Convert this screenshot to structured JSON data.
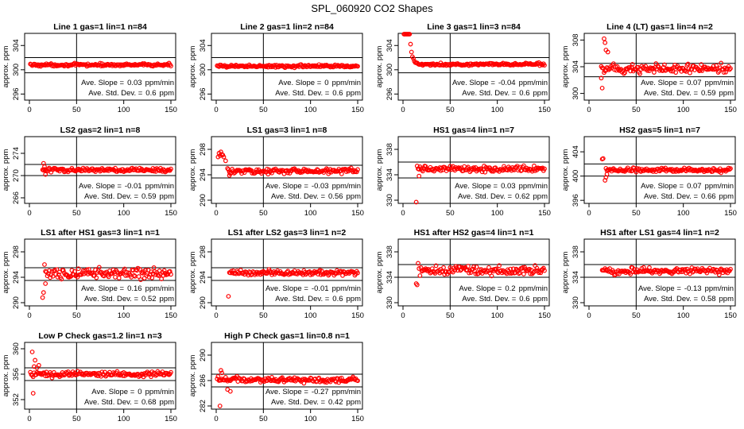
{
  "figure_title": "SPL_060920  CO2 Shapes",
  "y_axis_label": "approx. ppm",
  "stats_labels": {
    "slope": "Ave. Slope =",
    "slope_unit": "ppm/min",
    "sd": "Ave. Std. Dev. =",
    "sd_unit": "ppm"
  },
  "colors": {
    "points": "#ff0000",
    "axes": "#000000",
    "background": "#ffffff"
  },
  "chart_data": [
    {
      "type": "scatter",
      "title": "Line 1 gas=1 lin=1 n=84",
      "xlim": [
        0,
        150
      ],
      "ylim": [
        295,
        306
      ],
      "xticks": [
        0,
        50,
        100,
        150
      ],
      "yticks": [
        296,
        300,
        304
      ],
      "vline": 50,
      "hlines": [
        302,
        299.5
      ],
      "series_spec": {
        "start": 1,
        "end": 150,
        "mean": 300.8,
        "sd": 0.15
      },
      "slope": "0.03",
      "sd": "0.6"
    },
    {
      "type": "scatter",
      "title": "Line 2 gas=1 lin=2 n=84",
      "xlim": [
        0,
        150
      ],
      "ylim": [
        295,
        306
      ],
      "xticks": [
        0,
        50,
        100,
        150
      ],
      "yticks": [
        296,
        300,
        304
      ],
      "vline": 50,
      "hlines": [
        302,
        299.5
      ],
      "series_spec": {
        "start": 1,
        "end": 150,
        "mean": 300.6,
        "sd": 0.15
      },
      "slope": "0",
      "sd": "0.6"
    },
    {
      "type": "scatter",
      "title": "Line 3 gas=1 lin=3 n=84",
      "xlim": [
        0,
        150
      ],
      "ylim": [
        295,
        306
      ],
      "xticks": [
        0,
        50,
        100,
        150
      ],
      "yticks": [
        296,
        300,
        304
      ],
      "vline": 50,
      "hlines": [
        302,
        299.5
      ],
      "series_spec": {
        "start": 1,
        "end": 150,
        "mean": 300.9,
        "sd": 0.15,
        "decay_from": 306,
        "decay_len": 18
      },
      "slope": "-0.04",
      "sd": "0.6"
    },
    {
      "type": "scatter",
      "title": "Line 4 (LT) gas=1 lin=4 n=2",
      "xlim": [
        0,
        150
      ],
      "ylim": [
        299,
        309
      ],
      "xticks": [
        0,
        50,
        100,
        150
      ],
      "yticks": [
        300,
        304,
        308
      ],
      "vline": 50,
      "hlines": [
        304.5,
        302.5
      ],
      "series_spec": {
        "start": 13,
        "end": 150,
        "mean": 303.7,
        "sd": 0.5,
        "spike": [
          [
            13,
            302.3
          ],
          [
            14,
            300.8
          ],
          [
            16,
            308.2
          ],
          [
            17,
            307.6
          ],
          [
            18,
            306.5
          ],
          [
            20,
            306.2
          ]
        ]
      },
      "slope": "0.07",
      "sd": "0.59"
    },
    {
      "type": "scatter",
      "title": "LS2 gas=2 lin=1 n=8",
      "xlim": [
        0,
        150
      ],
      "ylim": [
        265,
        277
      ],
      "xticks": [
        0,
        50,
        100,
        150
      ],
      "yticks": [
        266,
        270,
        274
      ],
      "vline": 50,
      "hlines": [
        272,
        270
      ],
      "series_spec": {
        "start": 14,
        "end": 150,
        "mean": 271.0,
        "sd": 0.25,
        "spike": [
          [
            15,
            272.2
          ],
          [
            16,
            271.6
          ],
          [
            17,
            270.2
          ]
        ]
      },
      "slope": "-0.01",
      "sd": "0.59"
    },
    {
      "type": "scatter",
      "title": "LS1 gas=3 lin=1 n=8",
      "xlim": [
        0,
        150
      ],
      "ylim": [
        289.5,
        300
      ],
      "xticks": [
        0,
        50,
        100,
        150
      ],
      "yticks": [
        290,
        294,
        298
      ],
      "vline": 50,
      "hlines": [
        295.5,
        293.5
      ],
      "series_spec": {
        "start": 13,
        "end": 150,
        "mean": 294.6,
        "sd": 0.25,
        "spike": [
          [
            2,
            296.8
          ],
          [
            3,
            297.4
          ],
          [
            4,
            297.0
          ],
          [
            5,
            297.6
          ],
          [
            6,
            297.2
          ],
          [
            7,
            297.1
          ],
          [
            8,
            296.8
          ],
          [
            10,
            296.2
          ],
          [
            12,
            295.0
          ],
          [
            14,
            293.9
          ],
          [
            15,
            294.2
          ]
        ]
      },
      "slope": "-0.03",
      "sd": "0.56"
    },
    {
      "type": "scatter",
      "title": "HS1 gas=4 lin=1 n=7",
      "xlim": [
        0,
        150
      ],
      "ylim": [
        329.5,
        340
      ],
      "xticks": [
        0,
        50,
        100,
        150
      ],
      "yticks": [
        330,
        334,
        338
      ],
      "vline": 50,
      "hlines": [
        336,
        333.5
      ],
      "series_spec": {
        "start": 15,
        "end": 150,
        "mean": 334.9,
        "sd": 0.3,
        "spike": [
          [
            14,
            329.7
          ],
          [
            17,
            333.8
          ]
        ]
      },
      "slope": "0.03",
      "sd": "0.62"
    },
    {
      "type": "scatter",
      "title": "HS2 gas=5 lin=1 n=7",
      "xlim": [
        0,
        150
      ],
      "ylim": [
        395.5,
        406.5
      ],
      "xticks": [
        0,
        50,
        100,
        150
      ],
      "yticks": [
        396,
        400,
        404
      ],
      "vline": 50,
      "hlines": [
        402,
        400
      ],
      "series_spec": {
        "start": 18,
        "end": 150,
        "mean": 401.0,
        "sd": 0.25,
        "spike": [
          [
            14,
            402.8
          ],
          [
            15,
            402.9
          ],
          [
            17,
            399.3
          ],
          [
            18,
            399.8
          ],
          [
            19,
            400.3
          ]
        ]
      },
      "slope": "0.07",
      "sd": "0.66"
    },
    {
      "type": "scatter",
      "title": "LS1 after HS1 gas=3 lin=1 n=1",
      "xlim": [
        0,
        150
      ],
      "ylim": [
        289.5,
        300
      ],
      "xticks": [
        0,
        50,
        100,
        150
      ],
      "yticks": [
        290,
        294,
        298
      ],
      "vline": 50,
      "hlines": [
        295.5,
        293.5
      ],
      "series_spec": {
        "start": 17,
        "end": 150,
        "mean": 294.6,
        "sd": 0.55,
        "spike": [
          [
            14,
            290.8
          ],
          [
            15,
            291.6
          ],
          [
            16,
            296.0
          ],
          [
            17,
            293.0
          ]
        ]
      },
      "slope": "0.16",
      "sd": "0.52"
    },
    {
      "type": "scatter",
      "title": "LS1 after LS2 gas=3 lin=1 n=2",
      "xlim": [
        0,
        150
      ],
      "ylim": [
        289.5,
        300
      ],
      "xticks": [
        0,
        50,
        100,
        150
      ],
      "yticks": [
        290,
        294,
        298
      ],
      "vline": 50,
      "hlines": [
        295.5,
        293.5
      ],
      "series_spec": {
        "start": 14,
        "end": 150,
        "mean": 294.7,
        "sd": 0.3,
        "spike": [
          [
            13,
            291.0
          ]
        ]
      },
      "slope": "-0.01",
      "sd": "0.6"
    },
    {
      "type": "scatter",
      "title": "HS1 after HS2 gas=4 lin=1 n=1",
      "xlim": [
        0,
        150
      ],
      "ylim": [
        329.5,
        340
      ],
      "xticks": [
        0,
        50,
        100,
        150
      ],
      "yticks": [
        330,
        334,
        338
      ],
      "vline": 50,
      "hlines": [
        336,
        334
      ],
      "series_spec": {
        "start": 17,
        "end": 150,
        "mean": 335.0,
        "sd": 0.45,
        "spike": [
          [
            14,
            333.0
          ],
          [
            15,
            332.8
          ],
          [
            16,
            336.2
          ]
        ]
      },
      "slope": "0.2",
      "sd": "0.6"
    },
    {
      "type": "scatter",
      "title": "HS1 after LS1 gas=4 lin=1 n=2",
      "xlim": [
        0,
        150
      ],
      "ylim": [
        329.5,
        340
      ],
      "xticks": [
        0,
        50,
        100,
        150
      ],
      "yticks": [
        330,
        334,
        338
      ],
      "vline": 50,
      "hlines": [
        336,
        334
      ],
      "series_spec": {
        "start": 14,
        "end": 150,
        "mean": 335.0,
        "sd": 0.35
      },
      "slope": "-0.13",
      "sd": "0.58"
    },
    {
      "type": "scatter",
      "title": "Low P Check gas=1.2 lin=1 n=3",
      "xlim": [
        0,
        150
      ],
      "ylim": [
        350.5,
        361
      ],
      "xticks": [
        0,
        50,
        100,
        150
      ],
      "yticks": [
        352,
        356,
        360
      ],
      "vline": 50,
      "hlines": [
        357,
        355
      ],
      "series_spec": {
        "start": 1,
        "end": 150,
        "mean": 356.0,
        "sd": 0.3,
        "spike": [
          [
            3,
            359.5
          ],
          [
            4,
            353.0
          ],
          [
            5,
            357.2
          ],
          [
            6,
            358.2
          ],
          [
            8,
            357.0
          ],
          [
            10,
            357.4
          ]
        ]
      },
      "slope": "0",
      "sd": "0.68"
    },
    {
      "type": "scatter",
      "title": "High P Check gas=1 lin=0.8 n=1",
      "xlim": [
        0,
        150
      ],
      "ylim": [
        281.5,
        292
      ],
      "xticks": [
        0,
        50,
        100,
        150
      ],
      "yticks": [
        282,
        286,
        290
      ],
      "vline": 50,
      "hlines": [
        287,
        285
      ],
      "series_spec": {
        "start": 1,
        "end": 150,
        "mean": 286.1,
        "sd": 0.3,
        "spike": [
          [
            4,
            282.0
          ],
          [
            5,
            287.6
          ],
          [
            6,
            287.2
          ],
          [
            12,
            284.6
          ],
          [
            15,
            284.3
          ]
        ]
      },
      "slope": "-0.27",
      "sd": "0.42"
    }
  ]
}
